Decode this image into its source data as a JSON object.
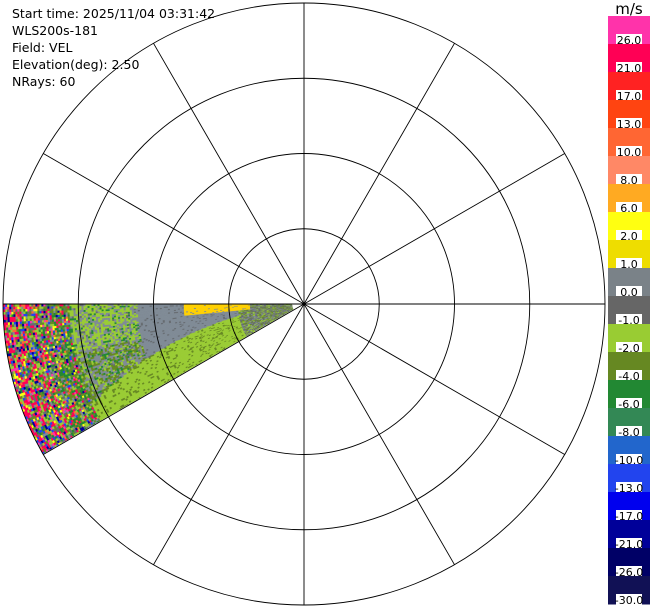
{
  "info": {
    "start_time": "Start time: 2025/11/04 03:31:42",
    "instrument": "WLS200s-181",
    "field": "Field: VEL",
    "elevation": "Elevation(deg): 2.50",
    "nrays": "NRays: 60"
  },
  "colorbar": {
    "unit": "m/s",
    "bins": [
      {
        "label": "26.0",
        "color": "#ff33aa"
      },
      {
        "label": "21.0",
        "color": "#ff0055"
      },
      {
        "label": "17.0",
        "color": "#ff2222"
      },
      {
        "label": "13.0",
        "color": "#ff4411"
      },
      {
        "label": "10.0",
        "color": "#ff6633"
      },
      {
        "label": "8.0",
        "color": "#ff8866"
      },
      {
        "label": "6.0",
        "color": "#ffaa22"
      },
      {
        "label": "2.0",
        "color": "#ffff11"
      },
      {
        "label": "1.0",
        "color": "#eedd00"
      },
      {
        "label": "0.0",
        "color": "#7a8288"
      },
      {
        "label": "-1.0",
        "color": "#666666"
      },
      {
        "label": "-2.0",
        "color": "#99cc33"
      },
      {
        "label": "-4.0",
        "color": "#668822"
      },
      {
        "label": "-6.0",
        "color": "#228833"
      },
      {
        "label": "-8.0",
        "color": "#338855"
      },
      {
        "label": "-10.0",
        "color": "#2266cc"
      },
      {
        "label": "-13.0",
        "color": "#2244ee"
      },
      {
        "label": "-17.0",
        "color": "#0000ee"
      },
      {
        "label": "-21.0",
        "color": "#000099"
      },
      {
        "label": "-26.0",
        "color": "#000066"
      },
      {
        "label": "-30.0",
        "color": "#111155"
      }
    ]
  },
  "chart_data": {
    "type": "heatmap",
    "projection": "polar PPI",
    "field": "VEL",
    "elevation_deg": 2.5,
    "nrays": 60,
    "range_rings": 4,
    "spokes_deg": 30,
    "data_sector_azimuth_deg": [
      240,
      270
    ],
    "regions": [
      {
        "name": "yellow",
        "azimuth_deg": [
          262,
          270
        ],
        "range_frac": [
          0.2,
          0.38
        ]
      },
      {
        "name": "gray",
        "azimuth_deg": [
          252,
          270
        ],
        "range_frac": [
          0.38,
          0.7
        ]
      },
      {
        "name": "green",
        "azimuth_deg": [
          240,
          256
        ],
        "range_frac": [
          0.4,
          0.75
        ]
      },
      {
        "name": "noisy",
        "azimuth_deg": [
          240,
          270
        ],
        "range_frac": [
          0.75,
          1.0
        ]
      }
    ]
  }
}
